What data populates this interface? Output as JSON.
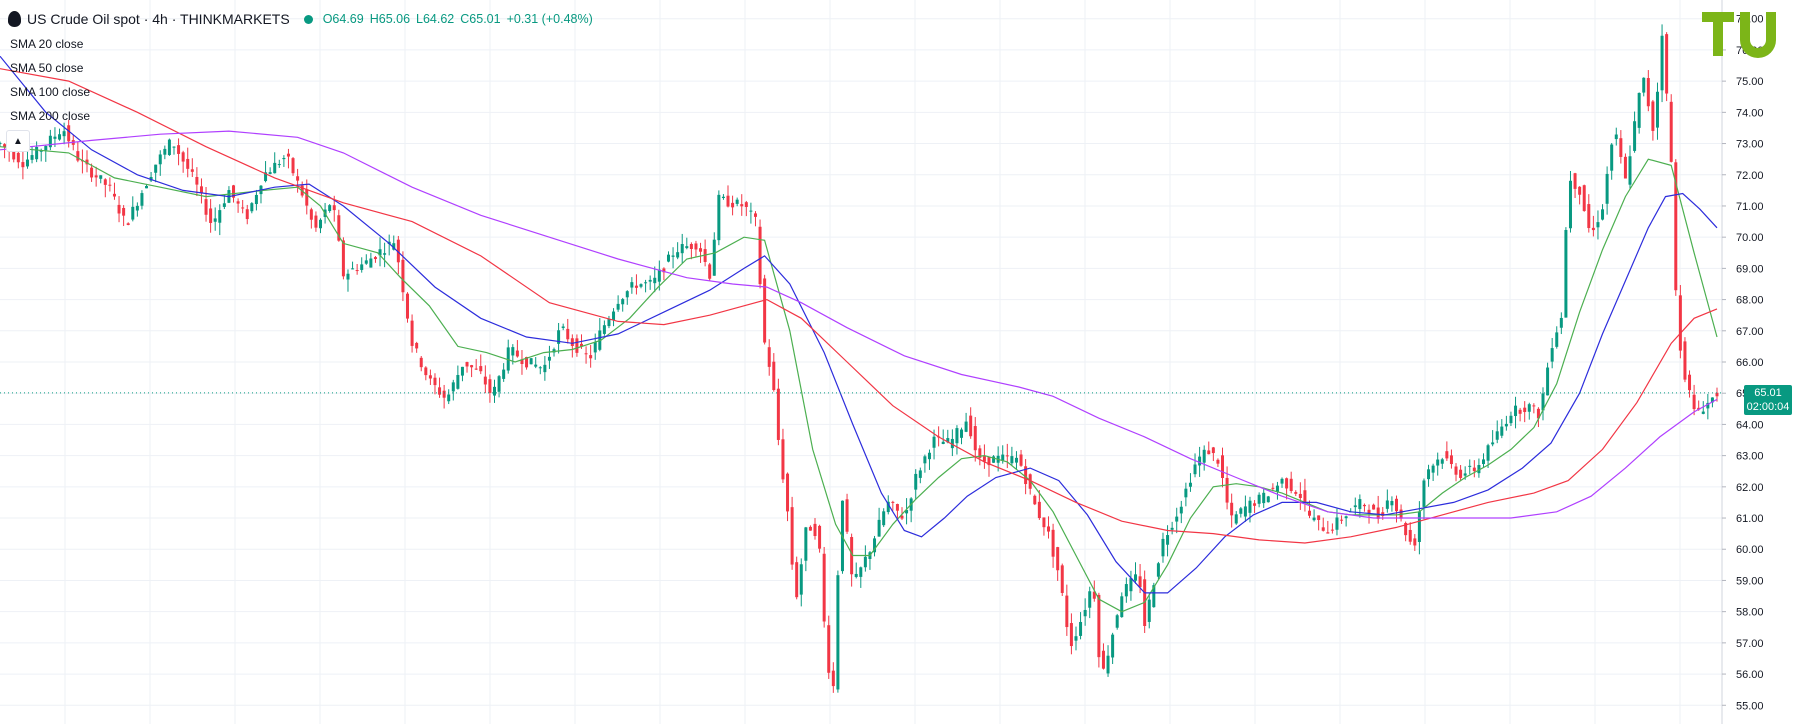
{
  "header": {
    "symbol": "US Crude Oil spot · 4h · THINKMARKETS",
    "open": "O64.69",
    "high": "H65.06",
    "low": "L64.62",
    "close": "C65.01",
    "change": "+0.31 (+0.48%)"
  },
  "indicators": [
    {
      "label": "SMA 20 close",
      "color": "#4caf50"
    },
    {
      "label": "SMA 50 close",
      "color": "#2d2ddc"
    },
    {
      "label": "SMA 100 close",
      "color": "#f23645"
    },
    {
      "label": "SMA 200 close",
      "color": "#b040ff"
    }
  ],
  "last_price": {
    "value": "65.01",
    "countdown": "02:00:04"
  },
  "colors": {
    "up": "#089981",
    "down": "#f23645",
    "grid": "#eef1f6",
    "logo": "#7cb518"
  },
  "chart_data": {
    "type": "candlestick",
    "title": "US Crude Oil spot · 4h · THINKMARKETS",
    "ylim": [
      54.4,
      77.6
    ],
    "y_ticks": [
      "55.00",
      "56.00",
      "57.00",
      "58.00",
      "59.00",
      "60.00",
      "61.00",
      "62.00",
      "63.00",
      "64.00",
      "65.00",
      "66.00",
      "67.00",
      "68.00",
      "69.00",
      "70.00",
      "71.00",
      "72.00",
      "73.00",
      "74.00",
      "75.00",
      "76.00",
      "77.00"
    ],
    "grid": true,
    "price_keypoints": [
      [
        0,
        73.0
      ],
      [
        20,
        72.4
      ],
      [
        35,
        72.8
      ],
      [
        55,
        73.5
      ],
      [
        70,
        72.4
      ],
      [
        95,
        71.6
      ],
      [
        110,
        70.4
      ],
      [
        135,
        72.3
      ],
      [
        150,
        73.1
      ],
      [
        170,
        71.8
      ],
      [
        185,
        70.4
      ],
      [
        200,
        71.5
      ],
      [
        215,
        70.6
      ],
      [
        230,
        72.0
      ],
      [
        250,
        72.6
      ],
      [
        265,
        71.3
      ],
      [
        275,
        70.2
      ],
      [
        290,
        71.2
      ],
      [
        300,
        68.8
      ],
      [
        320,
        69.2
      ],
      [
        330,
        69.5
      ],
      [
        345,
        69.9
      ],
      [
        360,
        66.6
      ],
      [
        375,
        65.4
      ],
      [
        390,
        64.8
      ],
      [
        405,
        66.0
      ],
      [
        420,
        65.6
      ],
      [
        430,
        64.9
      ],
      [
        445,
        66.4
      ],
      [
        460,
        66.0
      ],
      [
        475,
        65.8
      ],
      [
        490,
        67.1
      ],
      [
        500,
        66.6
      ],
      [
        515,
        66.1
      ],
      [
        525,
        67.0
      ],
      [
        540,
        68.0
      ],
      [
        555,
        68.5
      ],
      [
        570,
        68.5
      ],
      [
        590,
        69.6
      ],
      [
        610,
        69.8
      ],
      [
        620,
        68.8
      ],
      [
        628,
        71.2
      ],
      [
        650,
        71.0
      ],
      [
        660,
        70.5
      ],
      [
        668,
        66.6
      ],
      [
        675,
        65.4
      ],
      [
        680,
        63.5
      ],
      [
        688,
        61.2
      ],
      [
        695,
        58.3
      ],
      [
        705,
        60.8
      ],
      [
        715,
        60.5
      ],
      [
        722,
        56.5
      ],
      [
        728,
        55.6
      ],
      [
        735,
        62.0
      ],
      [
        745,
        58.8
      ],
      [
        760,
        60.0
      ],
      [
        775,
        61.5
      ],
      [
        790,
        61.0
      ],
      [
        800,
        62.3
      ],
      [
        815,
        63.5
      ],
      [
        830,
        63.4
      ],
      [
        845,
        64.2
      ],
      [
        855,
        62.8
      ],
      [
        870,
        62.9
      ],
      [
        890,
        62.9
      ],
      [
        905,
        61.3
      ],
      [
        915,
        60.6
      ],
      [
        925,
        59.2
      ],
      [
        935,
        56.9
      ],
      [
        945,
        57.8
      ],
      [
        955,
        59.0
      ],
      [
        962,
        55.8
      ],
      [
        970,
        57.0
      ],
      [
        980,
        58.6
      ],
      [
        995,
        59.2
      ],
      [
        1000,
        57.6
      ],
      [
        1015,
        60.2
      ],
      [
        1030,
        61.3
      ],
      [
        1045,
        62.8
      ],
      [
        1055,
        63.2
      ],
      [
        1065,
        62.8
      ],
      [
        1075,
        60.9
      ],
      [
        1090,
        61.4
      ],
      [
        1105,
        61.7
      ],
      [
        1120,
        62.2
      ],
      [
        1135,
        61.8
      ],
      [
        1145,
        61.0
      ],
      [
        1160,
        60.6
      ],
      [
        1175,
        61.1
      ],
      [
        1190,
        61.5
      ],
      [
        1205,
        61.0
      ],
      [
        1215,
        61.8
      ],
      [
        1225,
        60.8
      ],
      [
        1235,
        60.0
      ],
      [
        1245,
        62.5
      ],
      [
        1260,
        63.0
      ],
      [
        1275,
        62.4
      ],
      [
        1290,
        62.6
      ],
      [
        1305,
        63.5
      ],
      [
        1320,
        64.4
      ],
      [
        1335,
        64.6
      ],
      [
        1345,
        64.3
      ],
      [
        1355,
        66.5
      ],
      [
        1365,
        67.6
      ],
      [
        1370,
        72.0
      ],
      [
        1380,
        71.5
      ],
      [
        1390,
        70.0
      ],
      [
        1400,
        71.0
      ],
      [
        1410,
        73.5
      ],
      [
        1420,
        71.8
      ],
      [
        1435,
        75.2
      ],
      [
        1445,
        73.3
      ],
      [
        1452,
        76.6
      ],
      [
        1460,
        72.4
      ],
      [
        1465,
        67.2
      ],
      [
        1472,
        65.6
      ],
      [
        1480,
        64.4
      ],
      [
        1490,
        64.6
      ],
      [
        1500,
        65.0
      ]
    ],
    "sma_keypoints": {
      "SMA 20 close": [
        [
          0,
          72.9
        ],
        [
          60,
          72.7
        ],
        [
          100,
          71.9
        ],
        [
          140,
          71.6
        ],
        [
          180,
          71.3
        ],
        [
          230,
          71.5
        ],
        [
          260,
          71.6
        ],
        [
          280,
          71.0
        ],
        [
          300,
          69.8
        ],
        [
          330,
          69.5
        ],
        [
          350,
          68.7
        ],
        [
          375,
          67.8
        ],
        [
          400,
          66.5
        ],
        [
          425,
          66.3
        ],
        [
          450,
          66.0
        ],
        [
          475,
          66.3
        ],
        [
          500,
          66.4
        ],
        [
          525,
          66.7
        ],
        [
          550,
          67.4
        ],
        [
          575,
          68.4
        ],
        [
          600,
          69.3
        ],
        [
          625,
          69.5
        ],
        [
          650,
          70.0
        ],
        [
          668,
          69.9
        ],
        [
          690,
          67.0
        ],
        [
          710,
          63.2
        ],
        [
          730,
          60.8
        ],
        [
          745,
          59.8
        ],
        [
          760,
          59.8
        ],
        [
          780,
          60.8
        ],
        [
          800,
          61.6
        ],
        [
          820,
          62.3
        ],
        [
          840,
          62.9
        ],
        [
          860,
          63.0
        ],
        [
          880,
          62.8
        ],
        [
          900,
          62.2
        ],
        [
          920,
          61.2
        ],
        [
          940,
          59.8
        ],
        [
          960,
          58.4
        ],
        [
          980,
          58.0
        ],
        [
          1000,
          58.3
        ],
        [
          1020,
          59.5
        ],
        [
          1040,
          61.0
        ],
        [
          1060,
          62.0
        ],
        [
          1080,
          62.1
        ],
        [
          1100,
          62.0
        ],
        [
          1120,
          61.8
        ],
        [
          1140,
          61.5
        ],
        [
          1160,
          61.2
        ],
        [
          1180,
          61.1
        ],
        [
          1200,
          61.1
        ],
        [
          1220,
          61.1
        ],
        [
          1240,
          61.2
        ],
        [
          1260,
          61.8
        ],
        [
          1280,
          62.3
        ],
        [
          1300,
          62.7
        ],
        [
          1320,
          63.2
        ],
        [
          1340,
          63.9
        ],
        [
          1360,
          65.3
        ],
        [
          1380,
          67.6
        ],
        [
          1400,
          69.6
        ],
        [
          1420,
          71.3
        ],
        [
          1440,
          72.5
        ],
        [
          1460,
          72.3
        ],
        [
          1480,
          69.5
        ],
        [
          1500,
          66.8
        ]
      ],
      "SMA 50 close": [
        [
          0,
          75.8
        ],
        [
          40,
          74.0
        ],
        [
          80,
          72.8
        ],
        [
          120,
          72.0
        ],
        [
          160,
          71.5
        ],
        [
          200,
          71.3
        ],
        [
          240,
          71.6
        ],
        [
          270,
          71.7
        ],
        [
          300,
          71.0
        ],
        [
          340,
          69.8
        ],
        [
          380,
          68.4
        ],
        [
          420,
          67.4
        ],
        [
          460,
          66.8
        ],
        [
          500,
          66.6
        ],
        [
          540,
          66.9
        ],
        [
          580,
          67.6
        ],
        [
          620,
          68.3
        ],
        [
          650,
          69.0
        ],
        [
          668,
          69.4
        ],
        [
          690,
          68.5
        ],
        [
          720,
          66.3
        ],
        [
          745,
          64.0
        ],
        [
          770,
          61.8
        ],
        [
          790,
          60.6
        ],
        [
          805,
          60.4
        ],
        [
          825,
          61.0
        ],
        [
          845,
          61.7
        ],
        [
          870,
          62.3
        ],
        [
          900,
          62.6
        ],
        [
          925,
          62.2
        ],
        [
          950,
          61.1
        ],
        [
          975,
          59.6
        ],
        [
          1000,
          58.6
        ],
        [
          1020,
          58.6
        ],
        [
          1045,
          59.4
        ],
        [
          1070,
          60.4
        ],
        [
          1095,
          61.1
        ],
        [
          1120,
          61.5
        ],
        [
          1150,
          61.5
        ],
        [
          1180,
          61.2
        ],
        [
          1210,
          61.1
        ],
        [
          1240,
          61.3
        ],
        [
          1270,
          61.5
        ],
        [
          1300,
          61.9
        ],
        [
          1330,
          62.6
        ],
        [
          1355,
          63.4
        ],
        [
          1380,
          65.0
        ],
        [
          1400,
          66.9
        ],
        [
          1420,
          68.6
        ],
        [
          1440,
          70.3
        ],
        [
          1455,
          71.3
        ],
        [
          1470,
          71.4
        ],
        [
          1485,
          70.9
        ],
        [
          1500,
          70.3
        ]
      ],
      "SMA 100 close": [
        [
          0,
          75.4
        ],
        [
          60,
          75.0
        ],
        [
          120,
          74.0
        ],
        [
          180,
          72.9
        ],
        [
          240,
          71.9
        ],
        [
          300,
          71.1
        ],
        [
          360,
          70.5
        ],
        [
          420,
          69.4
        ],
        [
          480,
          67.9
        ],
        [
          540,
          67.3
        ],
        [
          580,
          67.2
        ],
        [
          620,
          67.5
        ],
        [
          650,
          67.8
        ],
        [
          670,
          68.0
        ],
        [
          700,
          67.4
        ],
        [
          740,
          66.0
        ],
        [
          780,
          64.6
        ],
        [
          820,
          63.6
        ],
        [
          860,
          62.8
        ],
        [
          900,
          62.2
        ],
        [
          940,
          61.5
        ],
        [
          980,
          60.9
        ],
        [
          1020,
          60.6
        ],
        [
          1060,
          60.5
        ],
        [
          1100,
          60.3
        ],
        [
          1140,
          60.2
        ],
        [
          1180,
          60.4
        ],
        [
          1220,
          60.7
        ],
        [
          1260,
          61.1
        ],
        [
          1300,
          61.5
        ],
        [
          1340,
          61.8
        ],
        [
          1370,
          62.2
        ],
        [
          1400,
          63.2
        ],
        [
          1430,
          64.7
        ],
        [
          1460,
          66.6
        ],
        [
          1480,
          67.4
        ],
        [
          1500,
          67.7
        ]
      ],
      "SMA 200 close": [
        [
          0,
          72.8
        ],
        [
          80,
          73.1
        ],
        [
          140,
          73.3
        ],
        [
          200,
          73.4
        ],
        [
          260,
          73.2
        ],
        [
          300,
          72.7
        ],
        [
          360,
          71.6
        ],
        [
          420,
          70.7
        ],
        [
          480,
          70.0
        ],
        [
          540,
          69.3
        ],
        [
          600,
          68.7
        ],
        [
          640,
          68.5
        ],
        [
          670,
          68.4
        ],
        [
          700,
          67.9
        ],
        [
          740,
          67.1
        ],
        [
          790,
          66.2
        ],
        [
          840,
          65.6
        ],
        [
          890,
          65.2
        ],
        [
          920,
          64.9
        ],
        [
          960,
          64.2
        ],
        [
          1000,
          63.6
        ],
        [
          1040,
          62.9
        ],
        [
          1080,
          62.3
        ],
        [
          1120,
          61.7
        ],
        [
          1160,
          61.2
        ],
        [
          1200,
          61.0
        ],
        [
          1240,
          61.0
        ],
        [
          1280,
          61.0
        ],
        [
          1320,
          61.0
        ],
        [
          1360,
          61.2
        ],
        [
          1390,
          61.7
        ],
        [
          1420,
          62.6
        ],
        [
          1450,
          63.6
        ],
        [
          1480,
          64.4
        ],
        [
          1500,
          64.8
        ]
      ]
    },
    "last_value": 65.01
  }
}
